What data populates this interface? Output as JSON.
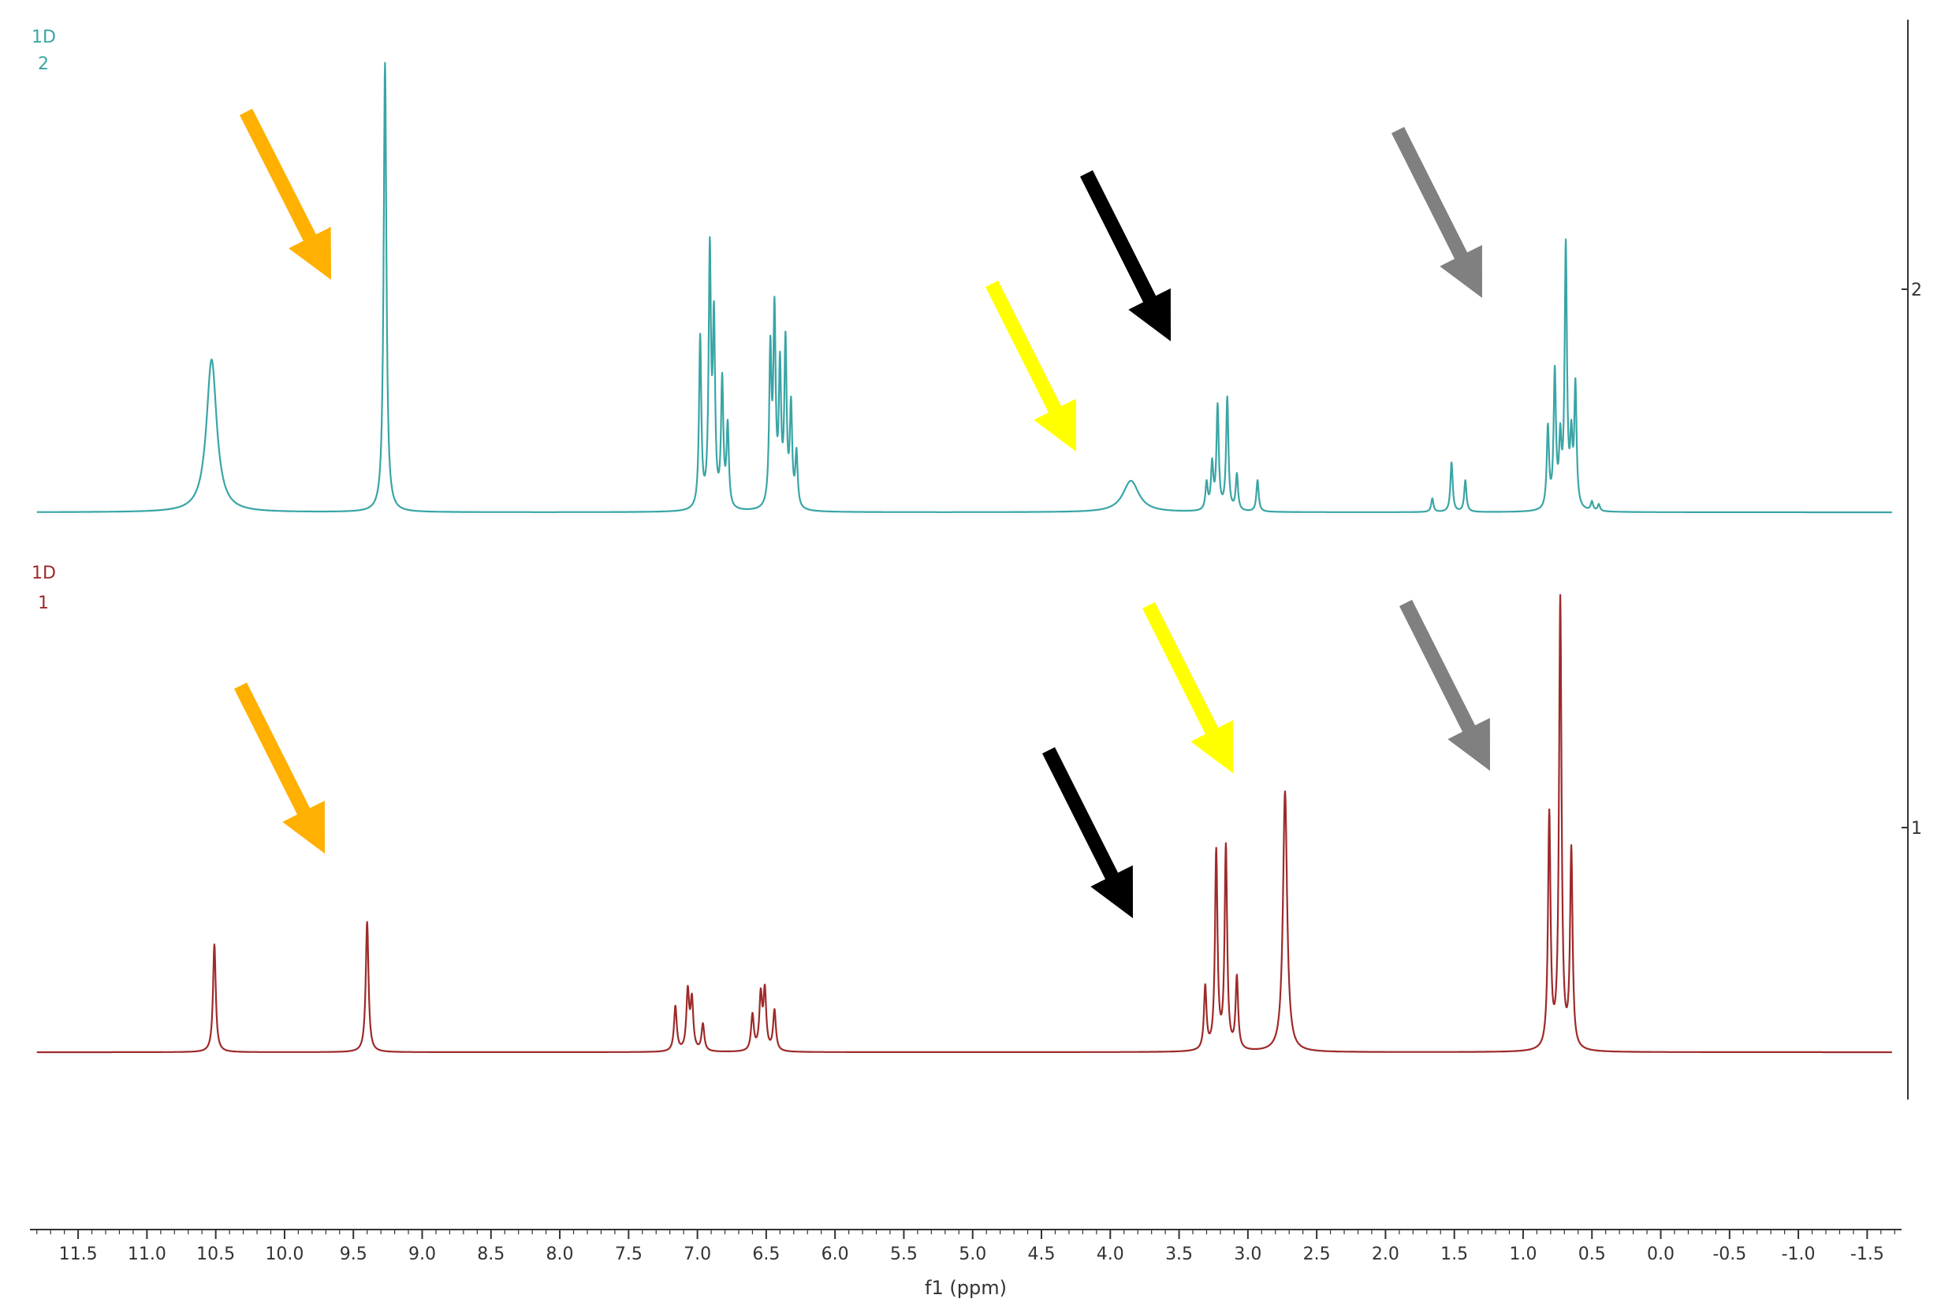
{
  "chart_data": {
    "type": "line",
    "title": "",
    "xlabel": "f1 (ppm)",
    "ylabel": "",
    "xlim": [
      11.85,
      -1.75
    ],
    "x_reversed": true,
    "x_ticks": [
      "11.5",
      "11.0",
      "10.5",
      "10.0",
      "9.5",
      "9.0",
      "8.5",
      "8.0",
      "7.5",
      "7.0",
      "6.5",
      "6.0",
      "5.5",
      "5.0",
      "4.5",
      "4.0",
      "3.5",
      "3.0",
      "2.5",
      "2.0",
      "1.5",
      "1.0",
      "0.5",
      "0.0",
      "-0.5",
      "-1.0",
      "-1.5"
    ],
    "right_axis_ticks": [
      "2",
      "1"
    ],
    "grid": false,
    "series": [
      {
        "name": "1D\n2",
        "label_line1": "1D",
        "label_line2": "2",
        "color": "#3aa5a5",
        "peaks": [
          {
            "ppm": 10.53,
            "height": 0.34,
            "width": 0.045
          },
          {
            "ppm": 9.27,
            "height": 1.0,
            "width": 0.012
          },
          {
            "ppm": 6.98,
            "height": 0.38,
            "width": 0.01
          },
          {
            "ppm": 6.91,
            "height": 0.56,
            "width": 0.01
          },
          {
            "ppm": 6.88,
            "height": 0.4,
            "width": 0.01
          },
          {
            "ppm": 6.82,
            "height": 0.28,
            "width": 0.01
          },
          {
            "ppm": 6.78,
            "height": 0.18,
            "width": 0.01
          },
          {
            "ppm": 6.47,
            "height": 0.34,
            "width": 0.01
          },
          {
            "ppm": 6.44,
            "height": 0.42,
            "width": 0.01
          },
          {
            "ppm": 6.4,
            "height": 0.3,
            "width": 0.01
          },
          {
            "ppm": 6.36,
            "height": 0.36,
            "width": 0.01
          },
          {
            "ppm": 6.32,
            "height": 0.22,
            "width": 0.01
          },
          {
            "ppm": 6.28,
            "height": 0.12,
            "width": 0.01
          },
          {
            "ppm": 3.85,
            "height": 0.07,
            "width": 0.07
          },
          {
            "ppm": 3.3,
            "height": 0.06,
            "width": 0.01
          },
          {
            "ppm": 3.26,
            "height": 0.1,
            "width": 0.01
          },
          {
            "ppm": 3.22,
            "height": 0.23,
            "width": 0.01
          },
          {
            "ppm": 3.15,
            "height": 0.25,
            "width": 0.01
          },
          {
            "ppm": 3.08,
            "height": 0.08,
            "width": 0.01
          },
          {
            "ppm": 2.93,
            "height": 0.07,
            "width": 0.01
          },
          {
            "ppm": 1.66,
            "height": 0.03,
            "width": 0.01
          },
          {
            "ppm": 1.52,
            "height": 0.11,
            "width": 0.01
          },
          {
            "ppm": 1.42,
            "height": 0.07,
            "width": 0.01
          },
          {
            "ppm": 0.82,
            "height": 0.18,
            "width": 0.01
          },
          {
            "ppm": 0.77,
            "height": 0.3,
            "width": 0.01
          },
          {
            "ppm": 0.73,
            "height": 0.14,
            "width": 0.01
          },
          {
            "ppm": 0.69,
            "height": 0.58,
            "width": 0.01
          },
          {
            "ppm": 0.65,
            "height": 0.14,
            "width": 0.01
          },
          {
            "ppm": 0.62,
            "height": 0.27,
            "width": 0.01
          },
          {
            "ppm": 0.5,
            "height": 0.02,
            "width": 0.01
          },
          {
            "ppm": 0.45,
            "height": 0.015,
            "width": 0.01
          }
        ]
      },
      {
        "name": "1D\n1",
        "label_line1": "1D",
        "label_line2": "1",
        "color": "#9e2a2a",
        "peaks": [
          {
            "ppm": 10.51,
            "height": 0.24,
            "width": 0.012
          },
          {
            "ppm": 9.4,
            "height": 0.29,
            "width": 0.012
          },
          {
            "ppm": 7.16,
            "height": 0.1,
            "width": 0.012
          },
          {
            "ppm": 7.07,
            "height": 0.13,
            "width": 0.012
          },
          {
            "ppm": 7.04,
            "height": 0.11,
            "width": 0.012
          },
          {
            "ppm": 6.96,
            "height": 0.06,
            "width": 0.012
          },
          {
            "ppm": 6.6,
            "height": 0.08,
            "width": 0.012
          },
          {
            "ppm": 6.54,
            "height": 0.12,
            "width": 0.012
          },
          {
            "ppm": 6.51,
            "height": 0.13,
            "width": 0.012
          },
          {
            "ppm": 6.44,
            "height": 0.09,
            "width": 0.012
          },
          {
            "ppm": 3.31,
            "height": 0.14,
            "width": 0.011
          },
          {
            "ppm": 3.23,
            "height": 0.44,
            "width": 0.011
          },
          {
            "ppm": 3.16,
            "height": 0.45,
            "width": 0.011
          },
          {
            "ppm": 3.08,
            "height": 0.16,
            "width": 0.011
          },
          {
            "ppm": 2.73,
            "height": 0.58,
            "width": 0.018
          },
          {
            "ppm": 0.81,
            "height": 0.52,
            "width": 0.011
          },
          {
            "ppm": 0.73,
            "height": 1.0,
            "width": 0.011
          },
          {
            "ppm": 0.65,
            "height": 0.44,
            "width": 0.011
          }
        ]
      }
    ],
    "annotations": [
      {
        "type": "arrow",
        "color": "orange",
        "spectrum": "1D 2",
        "points_to_ppm": 9.6
      },
      {
        "type": "arrow",
        "color": "yellow",
        "spectrum": "1D 2",
        "points_to_ppm": 4.2
      },
      {
        "type": "arrow",
        "color": "black",
        "spectrum": "1D 2",
        "points_to_ppm": 3.5
      },
      {
        "type": "arrow",
        "color": "gray",
        "spectrum": "1D 2",
        "points_to_ppm": 1.2
      },
      {
        "type": "arrow",
        "color": "orange",
        "spectrum": "1D 1",
        "points_to_ppm": 9.6
      },
      {
        "type": "arrow",
        "color": "black",
        "spectrum": "1D 1",
        "points_to_ppm": 3.8
      },
      {
        "type": "arrow",
        "color": "yellow",
        "spectrum": "1D 1",
        "points_to_ppm": 3.0
      },
      {
        "type": "arrow",
        "color": "gray",
        "spectrum": "1D 1",
        "points_to_ppm": 1.2
      }
    ],
    "colors": {
      "orange": "#ffb000",
      "yellow": "#ffff00",
      "black": "#000000",
      "gray": "#808080",
      "axis": "#333333"
    }
  }
}
